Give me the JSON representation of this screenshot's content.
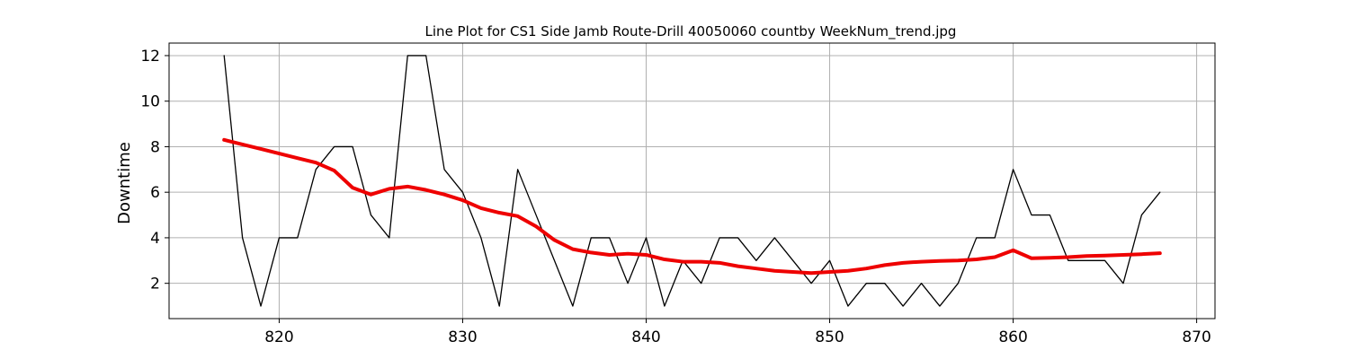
{
  "chart_data": {
    "type": "line",
    "title": "Line Plot for CS1 Side Jamb Route-Drill 40050060 countby WeekNum_trend.jpg",
    "xlabel": "",
    "ylabel": "Downtime",
    "xlim": [
      814,
      871
    ],
    "ylim": [
      0.45,
      12.55
    ],
    "xticks": [
      820,
      830,
      840,
      850,
      860,
      870
    ],
    "yticks": [
      2,
      4,
      6,
      8,
      10,
      12
    ],
    "grid": true,
    "legend": "none",
    "x": [
      817,
      818,
      819,
      820,
      821,
      822,
      823,
      824,
      825,
      826,
      827,
      828,
      829,
      830,
      831,
      832,
      833,
      834,
      835,
      836,
      837,
      838,
      839,
      840,
      841,
      842,
      843,
      844,
      845,
      846,
      847,
      848,
      849,
      850,
      851,
      852,
      853,
      854,
      855,
      856,
      857,
      858,
      859,
      860,
      861,
      862,
      863,
      864,
      865,
      866,
      867,
      868
    ],
    "series": [
      {
        "color": "#000000",
        "values": [
          12,
          4,
          1,
          4,
          4,
          7,
          8,
          8,
          5,
          4,
          12,
          12,
          7,
          6,
          4,
          1,
          7,
          5,
          3,
          1,
          4,
          4,
          2,
          4,
          1,
          3,
          2,
          4,
          4,
          3,
          4,
          3,
          2,
          3,
          1,
          2,
          2,
          1,
          2,
          1,
          2,
          4,
          4,
          7,
          5,
          5,
          3,
          3,
          3,
          2,
          5,
          6
        ]
      },
      {
        "color": "#ee0000",
        "values": [
          8.3,
          8.1,
          7.9,
          7.7,
          7.5,
          7.3,
          6.95,
          6.2,
          5.9,
          6.15,
          6.25,
          6.1,
          5.9,
          5.65,
          5.3,
          5.1,
          4.95,
          4.5,
          3.9,
          3.5,
          3.35,
          3.25,
          3.3,
          3.25,
          3.05,
          2.95,
          2.95,
          2.9,
          2.75,
          2.65,
          2.55,
          2.5,
          2.45,
          2.5,
          2.55,
          2.65,
          2.8,
          2.9,
          2.95,
          2.98,
          3.0,
          3.05,
          3.15,
          3.45,
          3.1,
          3.12,
          3.15,
          3.2,
          3.22,
          3.25,
          3.28,
          3.32
        ]
      }
    ]
  }
}
